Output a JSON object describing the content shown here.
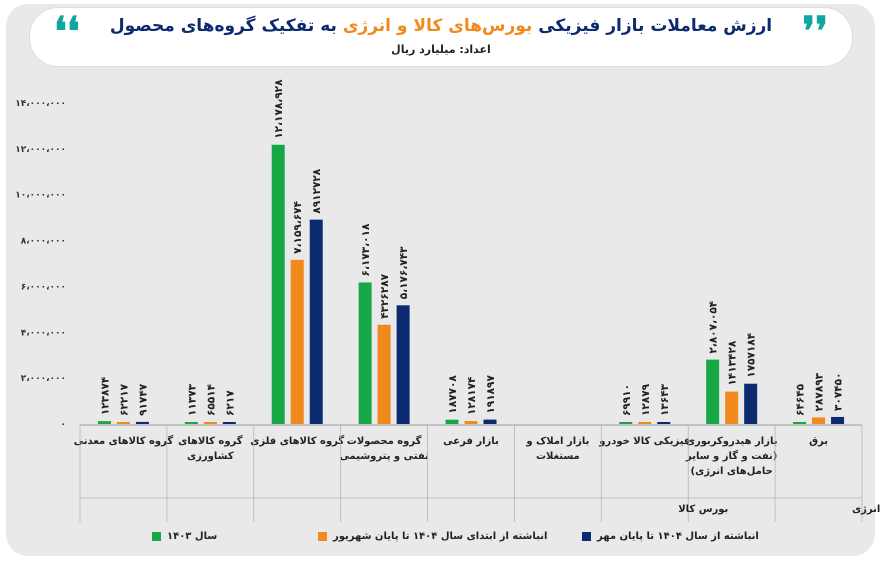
{
  "header": {
    "title_part1": "ارزش معاملات بازار فیزیکی ",
    "title_highlight": "بورس‌های کالا و انرژی",
    "title_part2": " به تفکیک گروه‌های محصول",
    "subtitle": "اعداد: میلیارد ریال",
    "open_quote": "❜❜",
    "close_quote": "❛❛"
  },
  "colors": {
    "s2024": "#17a746",
    "s1404": "#f08a1c",
    "cum1404": "#0b2a6f"
  },
  "chart_data": {
    "type": "bar",
    "unit": "میلیارد ریال",
    "yticks": [
      "۰",
      "۲،۰۰۰،۰۰۰",
      "۴،۰۰۰،۰۰۰",
      "۶،۰۰۰،۰۰۰",
      "۸،۰۰۰،۰۰۰",
      "۱۰،۰۰۰،۰۰۰",
      "۱۲،۰۰۰،۰۰۰",
      "۱۴،۰۰۰،۰۰۰"
    ],
    "ylim": [
      0,
      14000000
    ],
    "categories": [
      {
        "label": [
          "گروه کالاهای معدنی"
        ],
        "values": [
          123874,
          62217,
          91747
        ],
        "labels": [
          "۱۲۳۸۷۴",
          "۶۲۲۱۷",
          "۹۱۷۴۷"
        ]
      },
      {
        "label": [
          "گروه کالاهای",
          "کشاورزی"
        ],
        "values": [
          11373,
          65514,
          6217
        ],
        "labels": [
          "۱۱۳۷۳",
          "۶۵۵۱۴",
          "۶۲۱۷"
        ]
      },
      {
        "label": [
          "گروه کالاهای فلزی"
        ],
        "values": [
          12178928,
          7159674,
          8912728
        ],
        "labels": [
          "۱۲،۱۷۸،۹۲۸",
          "۷،۱۵۹،۶۷۴",
          "۸۹۱۲۷۲۸"
        ]
      },
      {
        "label": [
          "گروه محصولات",
          "نفتی و پتروشیمی"
        ],
        "values": [
          6173018,
          4326287,
          5176743
        ],
        "labels": [
          "۶،۱۷۳،۰۱۸",
          "۴۳۲۶۲۸۷",
          "۵،۱۷۶،۷۴۳"
        ]
      },
      {
        "label": [
          "بازار فرعی"
        ],
        "values": [
          187708,
          128174,
          191897
        ],
        "labels": [
          "۱۸۷۷۰۸",
          "۱۲۸۱۷۴",
          "۱۹۱۸۹۷"
        ]
      },
      {
        "label": [
          "بازار املاک و",
          "مستغلات"
        ],
        "values": [
          0,
          0,
          0
        ],
        "labels": [
          "",
          "",
          ""
        ]
      },
      {
        "label": [
          "فیزیکی کالا خودرو"
        ],
        "values": [
          69910,
          12879,
          13643
        ],
        "labels": [
          "۶۹۹۱۰",
          "۱۲۸۷۹",
          "۱۳۶۴۳"
        ]
      },
      {
        "label": [
          "بازار هیدروکربوری",
          "(نفت و گاز و سایر",
          "حامل‌های انرژی)"
        ],
        "values": [
          2807054,
          1413428,
          1757184
        ],
        "labels": [
          "۲،۸۰۷،۰۵۴",
          "۱۴۱۳۴۲۸",
          "۱۷۵۷۱۸۴"
        ]
      },
      {
        "label": [
          "برق"
        ],
        "values": [
          64645,
          287893,
          307450
        ],
        "labels": [
          "۶۴۶۴۵",
          "۲۸۷۸۹۳",
          "۳۰۷۴۵۰"
        ]
      }
    ],
    "groups": [
      {
        "label": "بورس کالا",
        "from": 0,
        "to": 6
      },
      {
        "label": "بورس انرژی",
        "from": 7,
        "to": 8
      }
    ],
    "series": [
      {
        "name": "سال ۱۴۰۳",
        "color": "#17a746"
      },
      {
        "name": "انباشته از ابتدای سال ۱۴۰۴ تا پایان شهریور",
        "color": "#f08a1c"
      },
      {
        "name": "انباشته از سال ۱۴۰۴ تا پایان مهر",
        "color": "#0b2a6f"
      }
    ]
  }
}
